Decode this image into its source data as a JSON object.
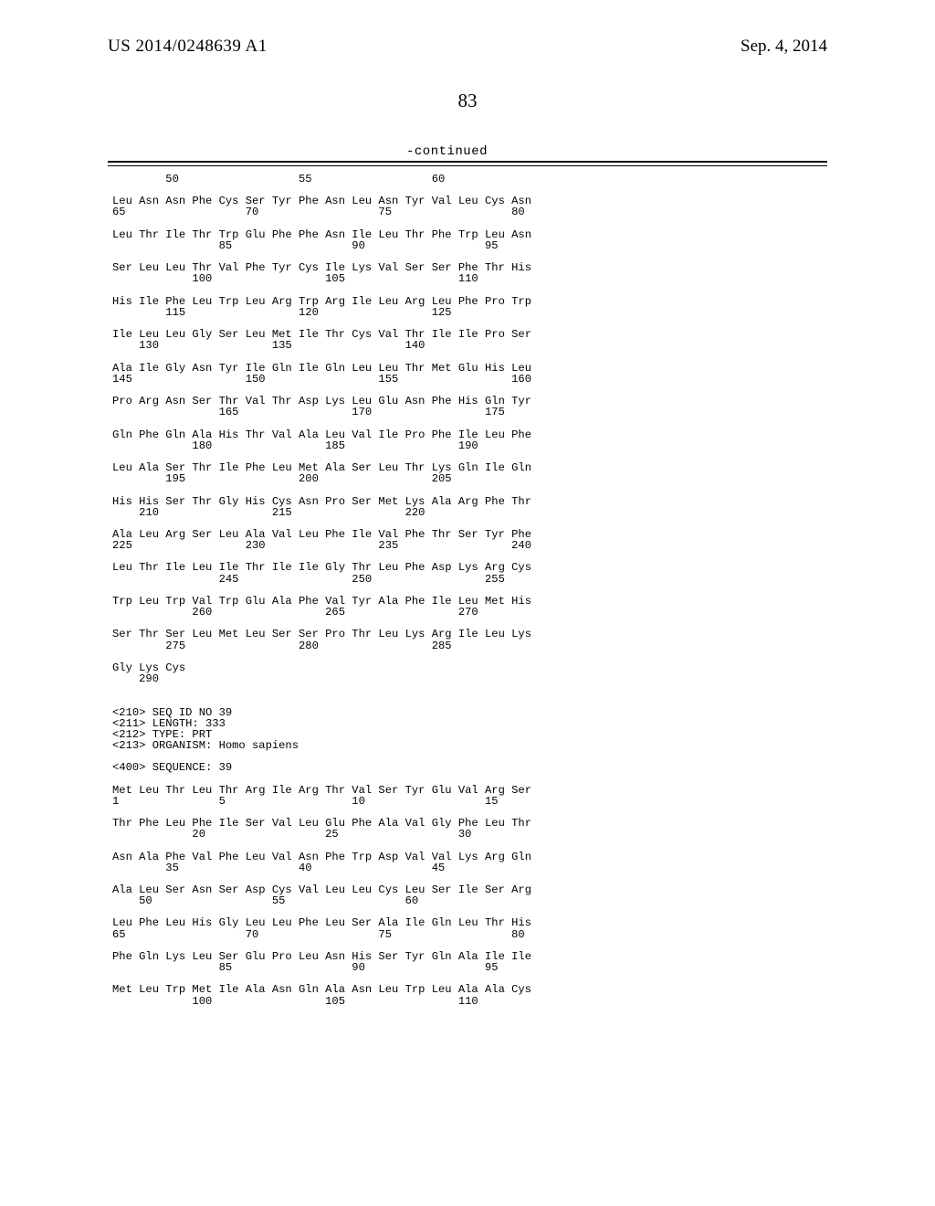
{
  "header": {
    "publication_number": "US 2014/0248639 A1",
    "publication_date": "Sep. 4, 2014",
    "page_number": "83",
    "continued_label": "-continued"
  },
  "sequence_block": "        50                  55                  60\n\nLeu Asn Asn Phe Cys Ser Tyr Phe Asn Leu Asn Tyr Val Leu Cys Asn\n65                  70                  75                  80\n\nLeu Thr Ile Thr Trp Glu Phe Phe Asn Ile Leu Thr Phe Trp Leu Asn\n                85                  90                  95\n\nSer Leu Leu Thr Val Phe Tyr Cys Ile Lys Val Ser Ser Phe Thr His\n            100                 105                 110\n\nHis Ile Phe Leu Trp Leu Arg Trp Arg Ile Leu Arg Leu Phe Pro Trp\n        115                 120                 125\n\nIle Leu Leu Gly Ser Leu Met Ile Thr Cys Val Thr Ile Ile Pro Ser\n    130                 135                 140\n\nAla Ile Gly Asn Tyr Ile Gln Ile Gln Leu Leu Thr Met Glu His Leu\n145                 150                 155                 160\n\nPro Arg Asn Ser Thr Val Thr Asp Lys Leu Glu Asn Phe His Gln Tyr\n                165                 170                 175\n\nGln Phe Gln Ala His Thr Val Ala Leu Val Ile Pro Phe Ile Leu Phe\n            180                 185                 190\n\nLeu Ala Ser Thr Ile Phe Leu Met Ala Ser Leu Thr Lys Gln Ile Gln\n        195                 200                 205\n\nHis His Ser Thr Gly His Cys Asn Pro Ser Met Lys Ala Arg Phe Thr\n    210                 215                 220\n\nAla Leu Arg Ser Leu Ala Val Leu Phe Ile Val Phe Thr Ser Tyr Phe\n225                 230                 235                 240\n\nLeu Thr Ile Leu Ile Thr Ile Ile Gly Thr Leu Phe Asp Lys Arg Cys\n                245                 250                 255\n\nTrp Leu Trp Val Trp Glu Ala Phe Val Tyr Ala Phe Ile Leu Met His\n            260                 265                 270\n\nSer Thr Ser Leu Met Leu Ser Ser Pro Thr Leu Lys Arg Ile Leu Lys\n        275                 280                 285\n\nGly Lys Cys\n    290\n\n\n<210> SEQ ID NO 39\n<211> LENGTH: 333\n<212> TYPE: PRT\n<213> ORGANISM: Homo sapiens\n\n<400> SEQUENCE: 39\n\nMet Leu Thr Leu Thr Arg Ile Arg Thr Val Ser Tyr Glu Val Arg Ser\n1               5                   10                  15\n\nThr Phe Leu Phe Ile Ser Val Leu Glu Phe Ala Val Gly Phe Leu Thr\n            20                  25                  30\n\nAsn Ala Phe Val Phe Leu Val Asn Phe Trp Asp Val Val Lys Arg Gln\n        35                  40                  45\n\nAla Leu Ser Asn Ser Asp Cys Val Leu Leu Cys Leu Ser Ile Ser Arg\n    50                  55                  60\n\nLeu Phe Leu His Gly Leu Leu Phe Leu Ser Ala Ile Gln Leu Thr His\n65                  70                  75                  80\n\nPhe Gln Lys Leu Ser Glu Pro Leu Asn His Ser Tyr Gln Ala Ile Ile\n                85                  90                  95\n\nMet Leu Trp Met Ile Ala Asn Gln Ala Asn Leu Trp Leu Ala Ala Cys\n            100                 105                 110"
}
